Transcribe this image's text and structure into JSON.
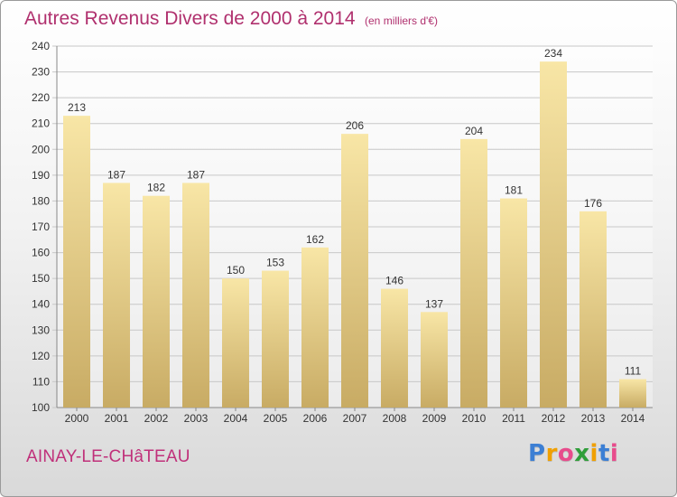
{
  "title": "Autres Revenus Divers de 2000 à 2014",
  "unit_note": "(en milliers d'€)",
  "place_name": "AINAY-LE-CHâTEAU",
  "brand": {
    "letters": [
      "P",
      "r",
      "o",
      "x",
      "i",
      "t",
      "i"
    ],
    "colors": [
      "#3c7fd4",
      "#f0a000",
      "#e84c8c",
      "#2f9e3a",
      "#f0a000",
      "#3c7fd4",
      "#e84c8c"
    ]
  },
  "colors": {
    "title": "#b0306e",
    "bar_light": "#f8e6a6",
    "bar_dark": "#c8ab64",
    "grid": "#c8c8c8",
    "axis_text": "#333333"
  },
  "chart_data": {
    "type": "bar",
    "title": "Autres Revenus Divers de 2000 à 2014",
    "subtitle": "(en milliers d'€)",
    "xlabel": "",
    "ylabel": "",
    "categories": [
      "2000",
      "2001",
      "2002",
      "2003",
      "2004",
      "2005",
      "2006",
      "2007",
      "2008",
      "2009",
      "2010",
      "2011",
      "2012",
      "2013",
      "2014"
    ],
    "values": [
      213,
      187,
      182,
      187,
      150,
      153,
      162,
      206,
      146,
      137,
      204,
      181,
      234,
      176,
      111
    ],
    "ylim": [
      100,
      240
    ],
    "yticks": [
      100,
      110,
      120,
      130,
      140,
      150,
      160,
      170,
      180,
      190,
      200,
      210,
      220,
      230,
      240
    ],
    "grid": true,
    "data_labels": true
  }
}
